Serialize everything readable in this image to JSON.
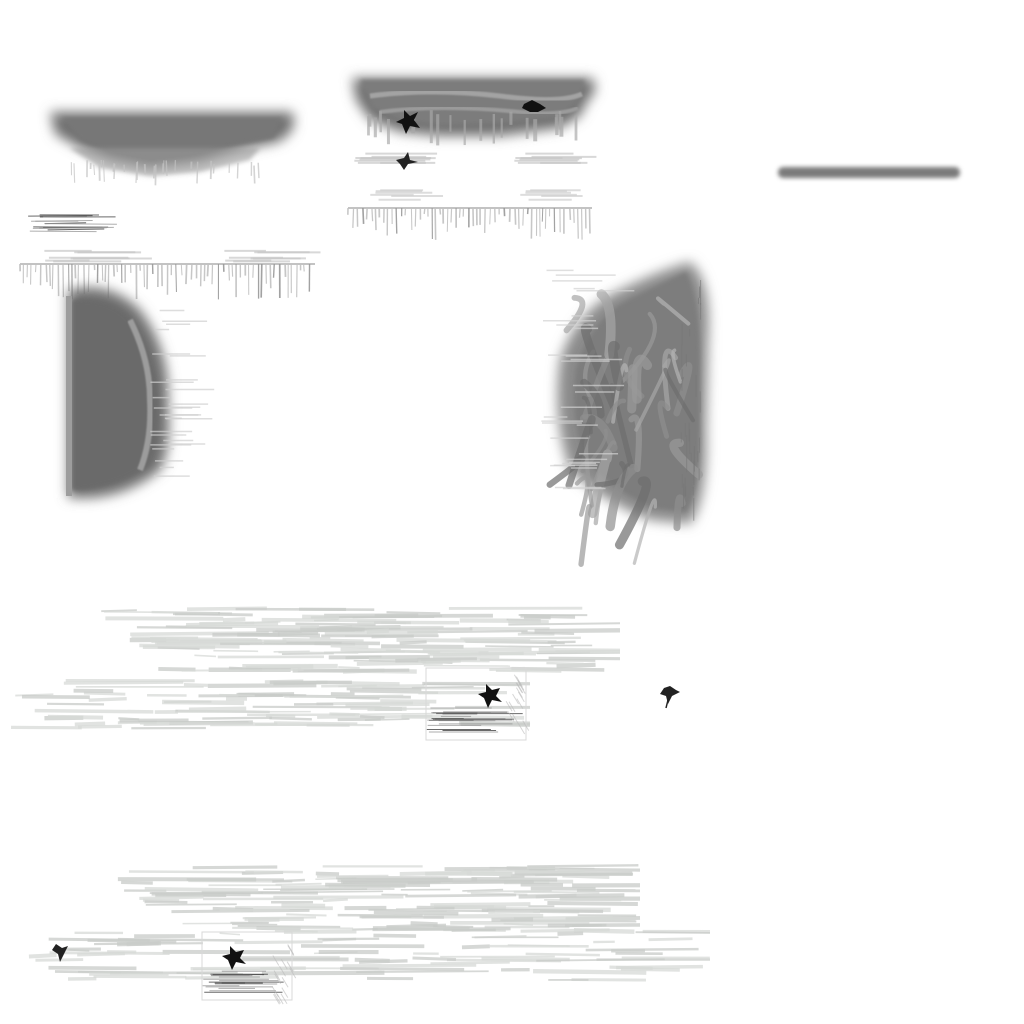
{
  "sheet": {
    "background_color": "#ffffff",
    "palette": {
      "dark_grey": "#6f6f6f",
      "mid_grey": "#8c8c8c",
      "light_grey": "#bdbdbd",
      "streak_grey": "#c9ccc9",
      "ink_black": "#111111"
    },
    "sprites": [
      {
        "name": "rock-platform-top-left",
        "kind": "platform"
      },
      {
        "name": "rock-platform-top-center",
        "kind": "platform"
      },
      {
        "name": "thin-bar-top-right",
        "kind": "bar"
      },
      {
        "name": "icicle-fringe-top-center",
        "kind": "fringe"
      },
      {
        "name": "icicle-fringe-left",
        "kind": "fringe"
      },
      {
        "name": "rock-wall-left",
        "kind": "wall"
      },
      {
        "name": "rock-wall-right",
        "kind": "wall"
      },
      {
        "name": "mist-streaks-middle",
        "kind": "mist"
      },
      {
        "name": "mist-streaks-bottom",
        "kind": "mist"
      },
      {
        "name": "splat-a",
        "kind": "splat"
      },
      {
        "name": "splat-b",
        "kind": "splat"
      },
      {
        "name": "splat-c",
        "kind": "splat"
      },
      {
        "name": "splat-d",
        "kind": "splat"
      },
      {
        "name": "splat-e",
        "kind": "splat"
      },
      {
        "name": "splat-f",
        "kind": "splat"
      }
    ]
  }
}
